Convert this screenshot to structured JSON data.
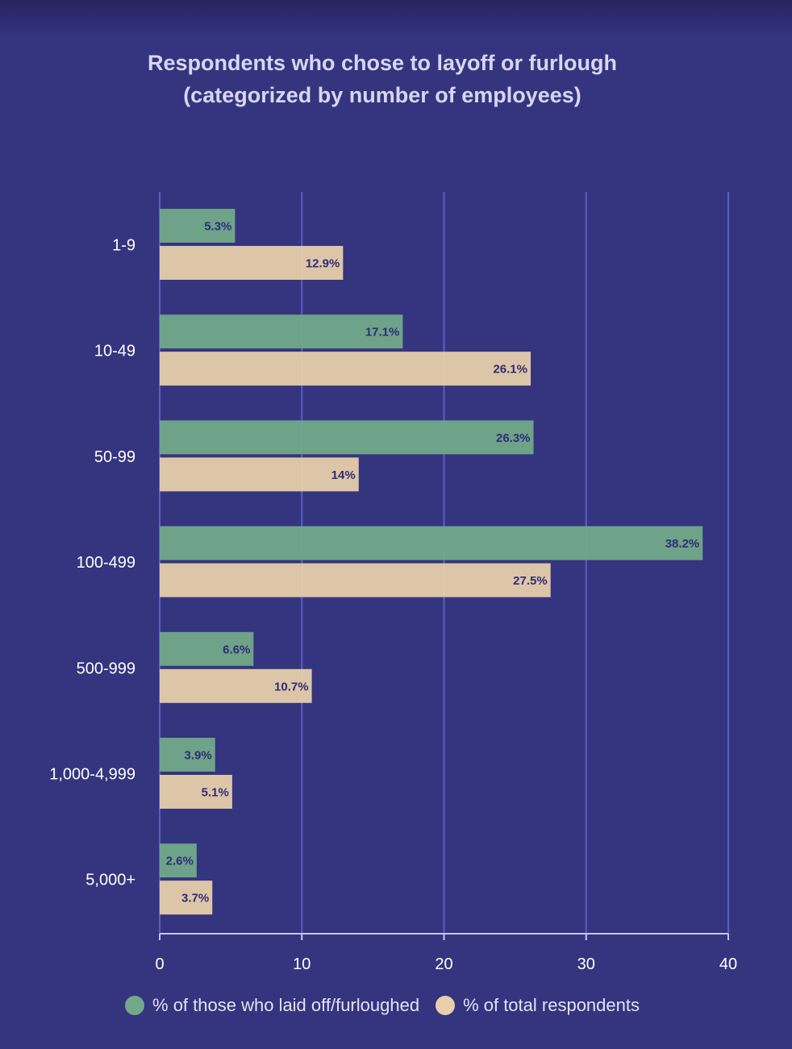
{
  "chart_data": {
    "type": "bar",
    "orientation": "horizontal",
    "title_lines": [
      "Respondents who chose to layoff or furlough",
      "(categorized by number of employees)"
    ],
    "categories": [
      "1-9",
      "10-49",
      "50-99",
      "100-499",
      "500-999",
      "1,000-4,999",
      "5,000+"
    ],
    "series": [
      {
        "name": "% of those who laid off/furloughed",
        "color": "#72a98a",
        "values": [
          5.3,
          17.1,
          26.3,
          38.2,
          6.6,
          3.9,
          2.6
        ],
        "labels": [
          "5.3%",
          "17.1%",
          "26.3%",
          "38.2%",
          "6.6%",
          "3.9%",
          "2.6%"
        ]
      },
      {
        "name": "% of total respondents",
        "color": "#e7cfab",
        "values": [
          12.9,
          26.1,
          14,
          27.5,
          10.7,
          5.1,
          3.7
        ],
        "labels": [
          "12.9%",
          "26.1%",
          "14%",
          "27.5%",
          "10.7%",
          "5.1%",
          "3.7%"
        ]
      }
    ],
    "xlim": [
      0,
      40
    ],
    "xticks": [
      "0",
      "10",
      "20",
      "30",
      "40"
    ],
    "grid": true,
    "legend_position": "bottom",
    "colors": {
      "background": "#35347f",
      "gridline": "#5a5fc2",
      "axis": "#c8c6e8",
      "label_text": "#2f2d78",
      "category_text": "#ffffff"
    }
  }
}
